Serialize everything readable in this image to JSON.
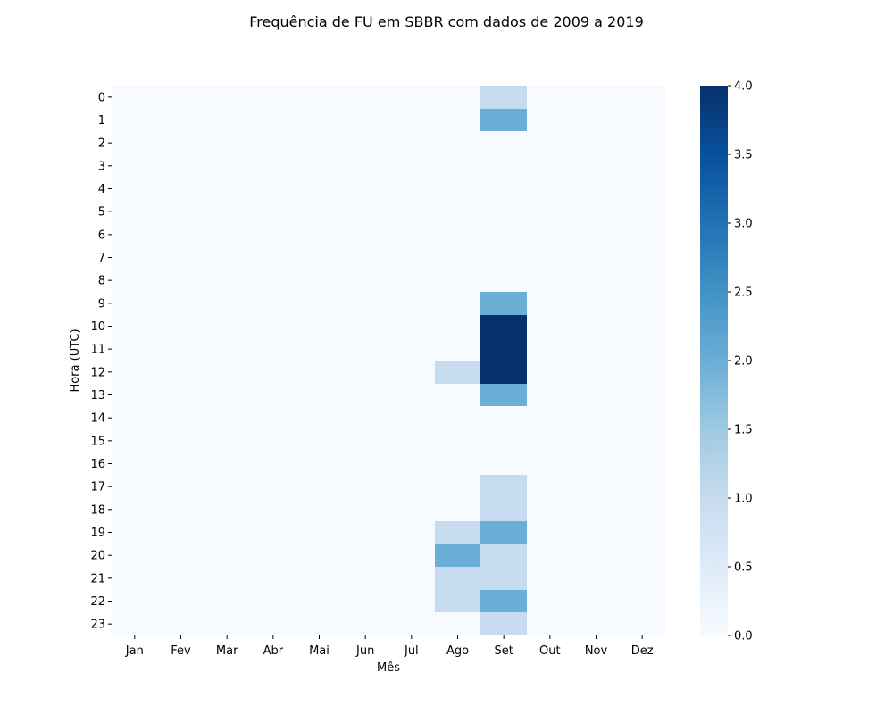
{
  "chart_data": {
    "type": "heatmap",
    "title": "Frequência de FU em SBBR com dados de 2009 a 2019",
    "xlabel": "Mês",
    "ylabel": "Hora (UTC)",
    "x_categories": [
      "Jan",
      "Fev",
      "Mar",
      "Abr",
      "Mai",
      "Jun",
      "Jul",
      "Ago",
      "Set",
      "Out",
      "Nov",
      "Dez"
    ],
    "y_categories": [
      "0",
      "1",
      "2",
      "3",
      "4",
      "5",
      "6",
      "7",
      "8",
      "9",
      "10",
      "11",
      "12",
      "13",
      "14",
      "15",
      "16",
      "17",
      "18",
      "19",
      "20",
      "21",
      "22",
      "23"
    ],
    "values": [
      [
        0,
        0,
        0,
        0,
        0,
        0,
        0,
        0,
        1,
        0,
        0,
        0
      ],
      [
        0,
        0,
        0,
        0,
        0,
        0,
        0,
        0,
        2,
        0,
        0,
        0
      ],
      [
        0,
        0,
        0,
        0,
        0,
        0,
        0,
        0,
        0,
        0,
        0,
        0
      ],
      [
        0,
        0,
        0,
        0,
        0,
        0,
        0,
        0,
        0,
        0,
        0,
        0
      ],
      [
        0,
        0,
        0,
        0,
        0,
        0,
        0,
        0,
        0,
        0,
        0,
        0
      ],
      [
        0,
        0,
        0,
        0,
        0,
        0,
        0,
        0,
        0,
        0,
        0,
        0
      ],
      [
        0,
        0,
        0,
        0,
        0,
        0,
        0,
        0,
        0,
        0,
        0,
        0
      ],
      [
        0,
        0,
        0,
        0,
        0,
        0,
        0,
        0,
        0,
        0,
        0,
        0
      ],
      [
        0,
        0,
        0,
        0,
        0,
        0,
        0,
        0,
        0,
        0,
        0,
        0
      ],
      [
        0,
        0,
        0,
        0,
        0,
        0,
        0,
        0,
        2,
        0,
        0,
        0
      ],
      [
        0,
        0,
        0,
        0,
        0,
        0,
        0,
        0,
        4,
        0,
        0,
        0
      ],
      [
        0,
        0,
        0,
        0,
        0,
        0,
        0,
        0,
        4,
        0,
        0,
        0
      ],
      [
        0,
        0,
        0,
        0,
        0,
        0,
        0,
        1,
        4,
        0,
        0,
        0
      ],
      [
        0,
        0,
        0,
        0,
        0,
        0,
        0,
        0,
        2,
        0,
        0,
        0
      ],
      [
        0,
        0,
        0,
        0,
        0,
        0,
        0,
        0,
        0,
        0,
        0,
        0
      ],
      [
        0,
        0,
        0,
        0,
        0,
        0,
        0,
        0,
        0,
        0,
        0,
        0
      ],
      [
        0,
        0,
        0,
        0,
        0,
        0,
        0,
        0,
        0,
        0,
        0,
        0
      ],
      [
        0,
        0,
        0,
        0,
        0,
        0,
        0,
        0,
        1,
        0,
        0,
        0
      ],
      [
        0,
        0,
        0,
        0,
        0,
        0,
        0,
        0,
        1,
        0,
        0,
        0
      ],
      [
        0,
        0,
        0,
        0,
        0,
        0,
        0,
        1,
        2,
        0,
        0,
        0
      ],
      [
        0,
        0,
        0,
        0,
        0,
        0,
        0,
        2,
        1,
        0,
        0,
        0
      ],
      [
        0,
        0,
        0,
        0,
        0,
        0,
        0,
        1,
        1,
        0,
        0,
        0
      ],
      [
        0,
        0,
        0,
        0,
        0,
        0,
        0,
        1,
        2,
        0,
        0,
        0
      ],
      [
        0,
        0,
        0,
        0,
        0,
        0,
        0,
        0,
        1,
        0,
        0,
        0
      ]
    ],
    "colorbar": {
      "min": 0.0,
      "max": 4.0,
      "ticks": [
        "0.0",
        "0.5",
        "1.0",
        "1.5",
        "2.0",
        "2.5",
        "3.0",
        "3.5",
        "4.0"
      ],
      "colormap": "Blues",
      "stops": [
        "#f7fbff",
        "#deebf7",
        "#c6dbef",
        "#9ecae1",
        "#6baed6",
        "#4292c6",
        "#2171b5",
        "#08519c",
        "#08306b"
      ]
    }
  }
}
